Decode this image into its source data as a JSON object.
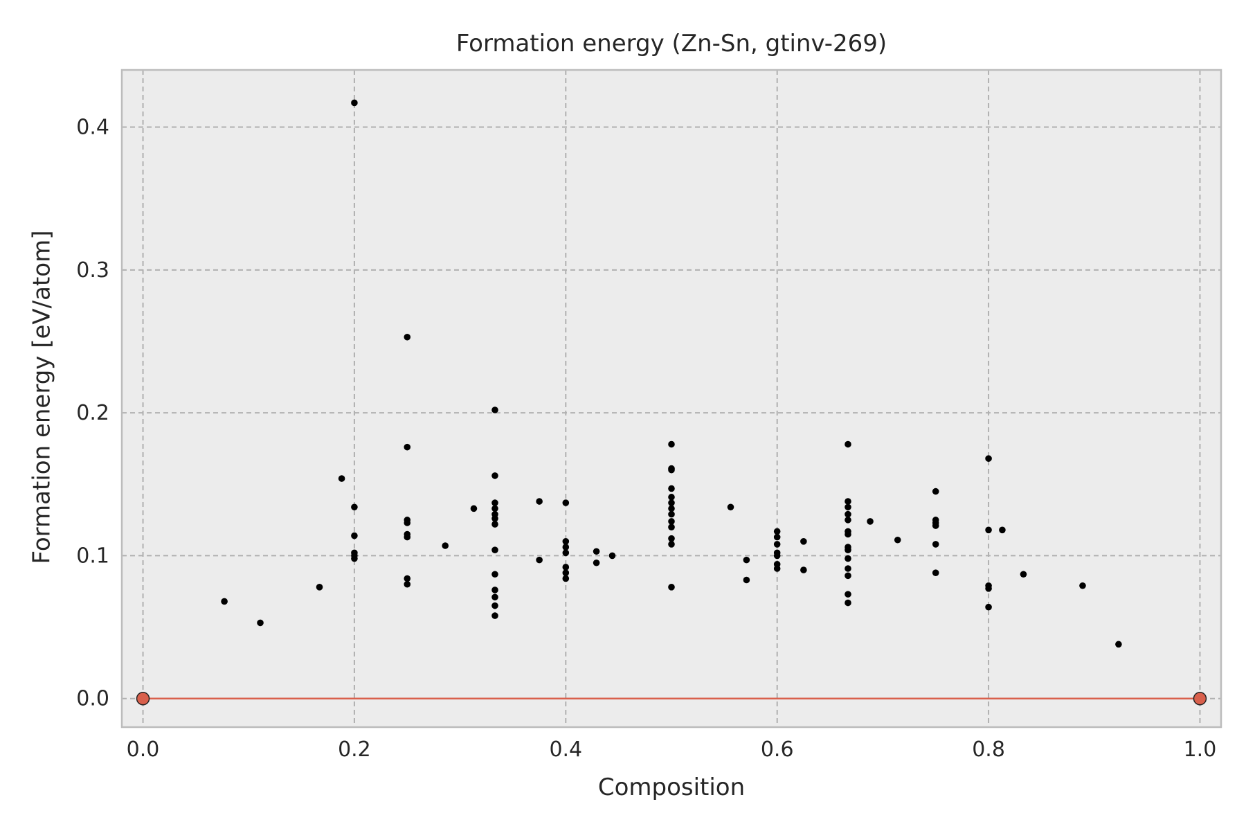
{
  "chart_data": {
    "type": "scatter",
    "title": "Formation energy (Zn-Sn, gtinv-269)",
    "xlabel": "Composition",
    "ylabel": "Formation energy [eV/atom]",
    "xlim": [
      -0.02,
      1.02
    ],
    "ylim": [
      -0.02,
      0.44
    ],
    "xticks": [
      0.0,
      0.2,
      0.4,
      0.6,
      0.8,
      1.0
    ],
    "xtick_labels": [
      "0.0",
      "0.2",
      "0.4",
      "0.6",
      "0.8",
      "1.0"
    ],
    "yticks": [
      0.0,
      0.1,
      0.2,
      0.3,
      0.4
    ],
    "ytick_labels": [
      "0.0",
      "0.1",
      "0.2",
      "0.3",
      "0.4"
    ],
    "grid": true,
    "background": "#ececec",
    "grid_color": "#b0b0b0",
    "point_color": "#000000",
    "hull_color": "#d9604c",
    "series": [
      {
        "kind": "structures",
        "points": [
          [
            0.077,
            0.068
          ],
          [
            0.111,
            0.053
          ],
          [
            0.167,
            0.078
          ],
          [
            0.188,
            0.154
          ],
          [
            0.2,
            0.417
          ],
          [
            0.2,
            0.134
          ],
          [
            0.2,
            0.114
          ],
          [
            0.2,
            0.102
          ],
          [
            0.2,
            0.1
          ],
          [
            0.2,
            0.098
          ],
          [
            0.25,
            0.253
          ],
          [
            0.25,
            0.176
          ],
          [
            0.25,
            0.125
          ],
          [
            0.25,
            0.123
          ],
          [
            0.25,
            0.115
          ],
          [
            0.25,
            0.113
          ],
          [
            0.25,
            0.084
          ],
          [
            0.25,
            0.08
          ],
          [
            0.286,
            0.107
          ],
          [
            0.313,
            0.133
          ],
          [
            0.333,
            0.202
          ],
          [
            0.333,
            0.156
          ],
          [
            0.333,
            0.137
          ],
          [
            0.333,
            0.133
          ],
          [
            0.333,
            0.129
          ],
          [
            0.333,
            0.126
          ],
          [
            0.333,
            0.122
          ],
          [
            0.333,
            0.104
          ],
          [
            0.333,
            0.087
          ],
          [
            0.333,
            0.076
          ],
          [
            0.333,
            0.071
          ],
          [
            0.333,
            0.065
          ],
          [
            0.333,
            0.058
          ],
          [
            0.375,
            0.138
          ],
          [
            0.375,
            0.097
          ],
          [
            0.4,
            0.137
          ],
          [
            0.4,
            0.11
          ],
          [
            0.4,
            0.106
          ],
          [
            0.4,
            0.102
          ],
          [
            0.4,
            0.092
          ],
          [
            0.4,
            0.088
          ],
          [
            0.4,
            0.084
          ],
          [
            0.429,
            0.103
          ],
          [
            0.429,
            0.095
          ],
          [
            0.444,
            0.1
          ],
          [
            0.5,
            0.178
          ],
          [
            0.5,
            0.161
          ],
          [
            0.5,
            0.16
          ],
          [
            0.5,
            0.147
          ],
          [
            0.5,
            0.141
          ],
          [
            0.5,
            0.137
          ],
          [
            0.5,
            0.133
          ],
          [
            0.5,
            0.129
          ],
          [
            0.5,
            0.124
          ],
          [
            0.5,
            0.12
          ],
          [
            0.5,
            0.112
          ],
          [
            0.5,
            0.108
          ],
          [
            0.5,
            0.078
          ],
          [
            0.556,
            0.134
          ],
          [
            0.571,
            0.097
          ],
          [
            0.571,
            0.083
          ],
          [
            0.6,
            0.117
          ],
          [
            0.6,
            0.113
          ],
          [
            0.6,
            0.108
          ],
          [
            0.6,
            0.102
          ],
          [
            0.6,
            0.1
          ],
          [
            0.6,
            0.094
          ],
          [
            0.6,
            0.091
          ],
          [
            0.625,
            0.11
          ],
          [
            0.625,
            0.09
          ],
          [
            0.667,
            0.178
          ],
          [
            0.667,
            0.138
          ],
          [
            0.667,
            0.134
          ],
          [
            0.667,
            0.129
          ],
          [
            0.667,
            0.125
          ],
          [
            0.667,
            0.117
          ],
          [
            0.667,
            0.115
          ],
          [
            0.667,
            0.106
          ],
          [
            0.667,
            0.104
          ],
          [
            0.667,
            0.098
          ],
          [
            0.667,
            0.091
          ],
          [
            0.667,
            0.086
          ],
          [
            0.667,
            0.073
          ],
          [
            0.667,
            0.067
          ],
          [
            0.688,
            0.124
          ],
          [
            0.714,
            0.111
          ],
          [
            0.75,
            0.145
          ],
          [
            0.75,
            0.125
          ],
          [
            0.75,
            0.123
          ],
          [
            0.75,
            0.121
          ],
          [
            0.75,
            0.108
          ],
          [
            0.75,
            0.088
          ],
          [
            0.8,
            0.168
          ],
          [
            0.8,
            0.118
          ],
          [
            0.8,
            0.079
          ],
          [
            0.8,
            0.077
          ],
          [
            0.8,
            0.064
          ],
          [
            0.813,
            0.118
          ],
          [
            0.833,
            0.087
          ],
          [
            0.889,
            0.079
          ],
          [
            0.923,
            0.038
          ]
        ]
      },
      {
        "kind": "convex_hull",
        "points": [
          [
            0.0,
            0.0
          ],
          [
            1.0,
            0.0
          ]
        ]
      }
    ]
  }
}
